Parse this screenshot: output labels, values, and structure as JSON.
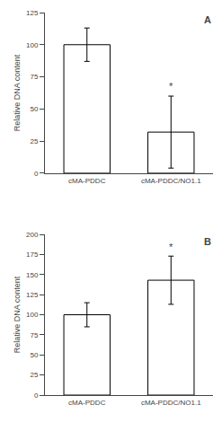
{
  "chart_data": [
    {
      "type": "bar",
      "title": "A",
      "categories": [
        "cMA-PDDC",
        "cMA-PDDC/NO1.1"
      ],
      "values": [
        100,
        32
      ],
      "errors": [
        13,
        28
      ],
      "color": "#ffffff",
      "ylabel": "Relative DNA content",
      "ylim": [
        0,
        125
      ],
      "yticks": [
        0,
        25,
        50,
        75,
        100,
        125
      ],
      "grid": false,
      "annotations": [
        {
          "text": "*",
          "x": "cMA-PDDC/NO1.1",
          "y": 62
        }
      ]
    },
    {
      "type": "bar",
      "title": "B",
      "categories": [
        "cMA-PDDC",
        "cMA-PDDC/NO1.1"
      ],
      "values": [
        100,
        143
      ],
      "errors": [
        15,
        30
      ],
      "color": "#ffffff",
      "ylabel": "Relative DNA content",
      "ylim": [
        0,
        200
      ],
      "yticks": [
        0,
        25,
        50,
        75,
        100,
        125,
        150,
        175,
        200
      ],
      "grid": false,
      "annotations": [
        {
          "text": "*",
          "x": "cMA-PDDC/NO1.1",
          "y": 175
        }
      ]
    }
  ]
}
